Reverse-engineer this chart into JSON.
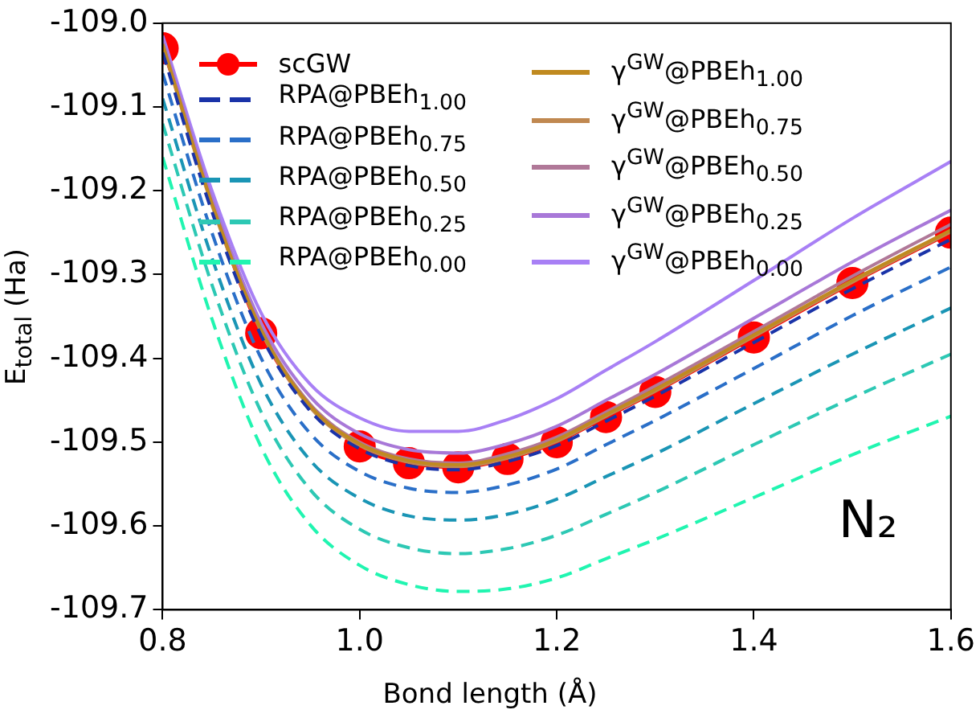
{
  "chart_data": {
    "type": "line",
    "xlabel": "Bond length (Å)",
    "ylabel": "E$_{total}$ (Ha)",
    "annotations": [
      "N₂"
    ],
    "x": [
      0.8,
      0.85,
      0.9,
      0.95,
      1.0,
      1.05,
      1.1,
      1.15,
      1.2,
      1.25,
      1.3,
      1.4,
      1.5,
      1.6
    ],
    "series": [
      {
        "name": "scGW",
        "color": "#ff0000",
        "marker": "circle",
        "x": [
          0.8,
          0.9,
          1.0,
          1.05,
          1.1,
          1.15,
          1.2,
          1.25,
          1.3,
          1.4,
          1.5,
          1.6
        ],
        "values": [
          -109.03,
          -109.37,
          -109.505,
          -109.525,
          -109.53,
          -109.52,
          -109.5,
          -109.47,
          -109.44,
          -109.375,
          -109.31,
          -109.25
        ]
      },
      {
        "name": "RPA@PBEh$_{1.00}$",
        "color": "#1a33a8",
        "line_style": "dashed",
        "values": [
          -109.035,
          -109.225,
          -109.373,
          -109.463,
          -109.508,
          -109.528,
          -109.533,
          -109.523,
          -109.504,
          -109.475,
          -109.445,
          -109.381,
          -109.317,
          -109.258
        ]
      },
      {
        "name": "RPA@PBEh$_{0.75}$",
        "color": "#2a6fc8",
        "line_style": "dashed",
        "values": [
          -109.06,
          -109.25,
          -109.4,
          -109.49,
          -109.535,
          -109.555,
          -109.56,
          -109.551,
          -109.532,
          -109.503,
          -109.474,
          -109.412,
          -109.349,
          -109.291
        ]
      },
      {
        "name": "RPA@PBEh$_{0.50}$",
        "color": "#1a95b5",
        "line_style": "dashed",
        "values": [
          -109.09,
          -109.28,
          -109.431,
          -109.522,
          -109.567,
          -109.588,
          -109.593,
          -109.586,
          -109.568,
          -109.541,
          -109.514,
          -109.454,
          -109.395,
          -109.34
        ]
      },
      {
        "name": "RPA@PBEh$_{0.25}$",
        "color": "#2dc8b4",
        "line_style": "dashed",
        "values": [
          -109.12,
          -109.312,
          -109.464,
          -109.557,
          -109.604,
          -109.626,
          -109.633,
          -109.627,
          -109.611,
          -109.586,
          -109.56,
          -109.503,
          -109.447,
          -109.395
        ]
      },
      {
        "name": "RPA@PBEh$_{0.00}$",
        "color": "#20f5b0",
        "line_style": "dashed",
        "values": [
          -109.16,
          -109.353,
          -109.506,
          -109.599,
          -109.647,
          -109.67,
          -109.678,
          -109.675,
          -109.662,
          -109.639,
          -109.616,
          -109.566,
          -109.515,
          -109.469
        ]
      },
      {
        "name": "γ$^{GW}$@PBEh$_{1.00}$",
        "color": "#c08a20",
        "line_style": "solid",
        "values": [
          -109.025,
          -109.215,
          -109.366,
          -109.457,
          -109.502,
          -109.522,
          -109.527,
          -109.517,
          -109.497,
          -109.467,
          -109.437,
          -109.372,
          -109.307,
          -109.247
        ]
      },
      {
        "name": "γ$^{GW}$@PBEh$_{0.75}$",
        "color": "#c08850",
        "line_style": "solid",
        "values": [
          -109.027,
          -109.217,
          -109.368,
          -109.459,
          -109.504,
          -109.524,
          -109.529,
          -109.519,
          -109.499,
          -109.469,
          -109.439,
          -109.374,
          -109.309,
          -109.249
        ]
      },
      {
        "name": "γ$^{GW}$@PBEh$_{0.50}$",
        "color": "#b07898",
        "line_style": "solid",
        "values": [
          -109.025,
          -109.215,
          -109.365,
          -109.455,
          -109.5,
          -109.52,
          -109.525,
          -109.514,
          -109.494,
          -109.464,
          -109.433,
          -109.368,
          -109.302,
          -109.24
        ]
      },
      {
        "name": "γ$^{GW}$@PBEh$_{0.25}$",
        "color": "#a878d8",
        "line_style": "solid",
        "values": [
          -109.02,
          -109.209,
          -109.358,
          -109.446,
          -109.49,
          -109.509,
          -109.513,
          -109.502,
          -109.481,
          -109.45,
          -109.419,
          -109.352,
          -109.285,
          -109.223
        ]
      },
      {
        "name": "γ$^{GW}$@PBEh$_{0.00}$",
        "color": "#a880f5",
        "line_style": "solid",
        "values": [
          -109.015,
          -109.2,
          -109.346,
          -109.431,
          -109.471,
          -109.487,
          -109.487,
          -109.473,
          -109.448,
          -109.414,
          -109.38,
          -109.307,
          -109.233,
          -109.165
        ]
      }
    ],
    "xlim": [
      0.8,
      1.6
    ],
    "xticks": [
      0.8,
      {
        "value": 1.0,
        "label": "1.0"
      },
      1.2,
      1.4,
      1.6
    ],
    "ylim": [
      -109.7,
      -109.0
    ],
    "yticks": [
      -109.7,
      -109.6,
      -109.5,
      -109.4,
      -109.3,
      -109.2,
      -109.1,
      {
        "value": -109.0,
        "label": "-109.0"
      }
    ],
    "grid": false,
    "legend": "top"
  }
}
